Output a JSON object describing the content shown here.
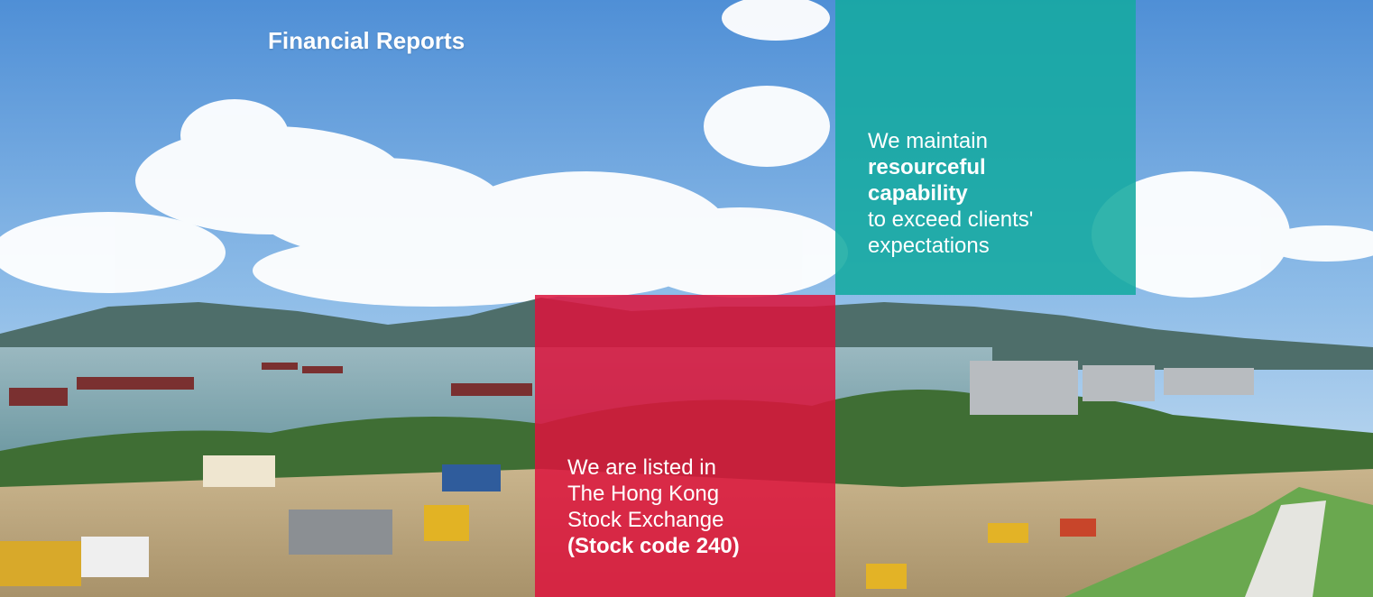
{
  "page": {
    "title": "Financial Reports"
  },
  "panels": {
    "teal": {
      "color": "#14aaa0",
      "line1": "We maintain",
      "bold1": "resourceful",
      "bold2": "capability",
      "line2": "to exceed clients'",
      "line3": "expectations"
    },
    "red": {
      "color": "#dc143c",
      "line1": "We are listed in",
      "line2": "The Hong Kong",
      "line3": "Stock Exchange",
      "bold1": "(Stock code 240)"
    }
  }
}
